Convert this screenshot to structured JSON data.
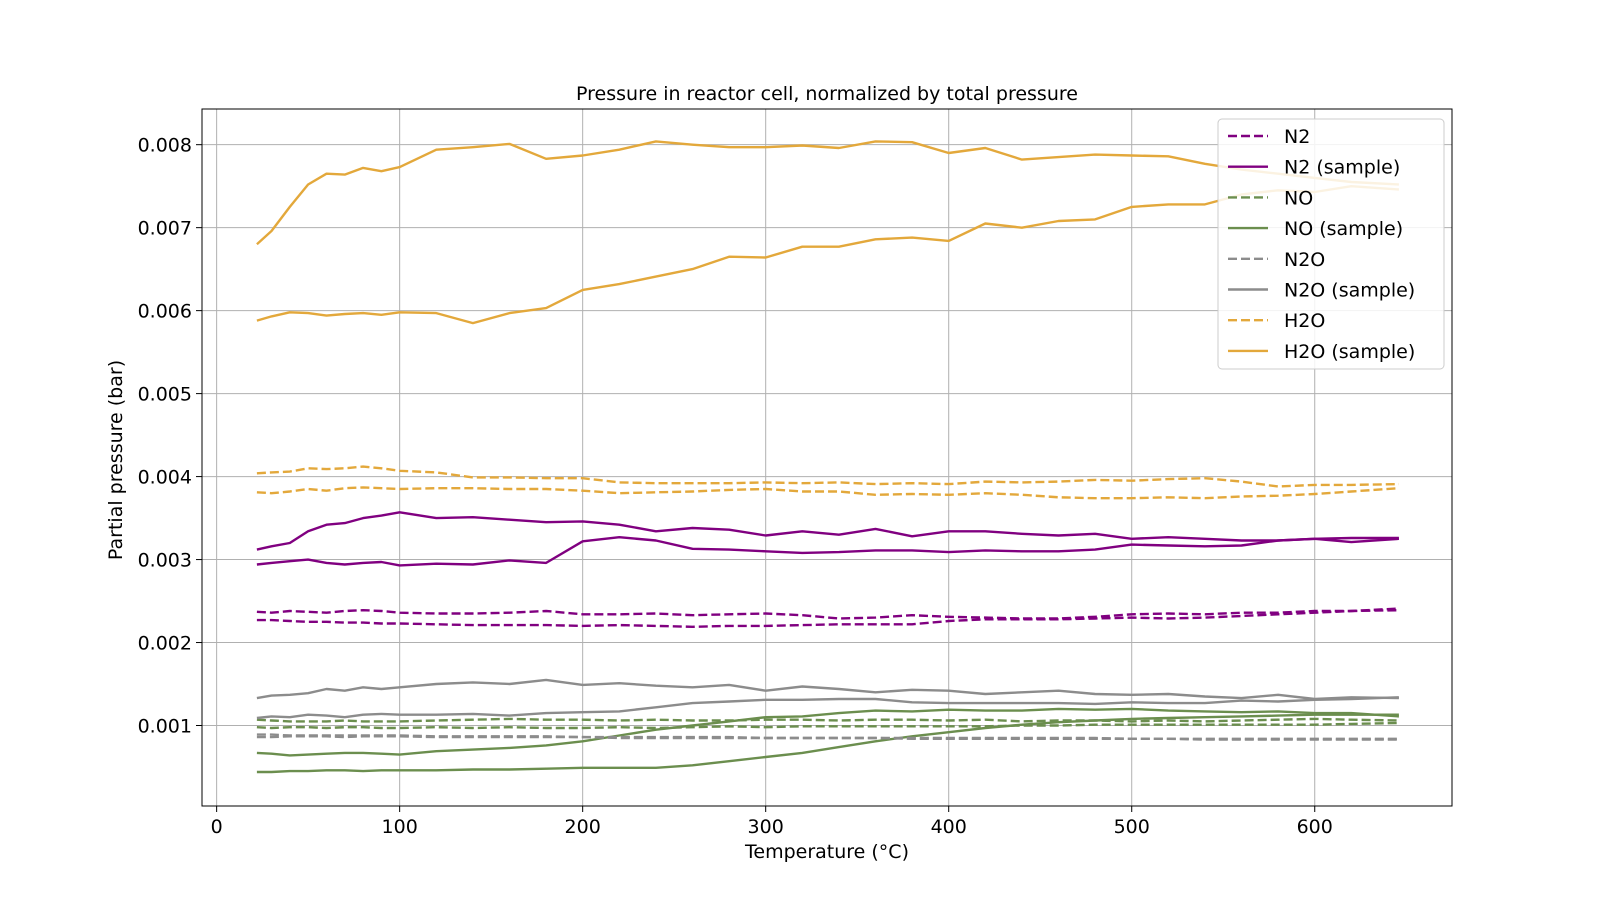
{
  "chart_data": {
    "type": "line",
    "title": "Pressure in reactor cell, normalized by total pressure",
    "xlabel": "Temperature (°C)",
    "ylabel": "Partial pressure (bar)",
    "xlim": [
      -8,
      675
    ],
    "ylim": [
      3e-05,
      0.00843
    ],
    "xticks": [
      0,
      100,
      200,
      300,
      400,
      500,
      600
    ],
    "yticks": [
      0.001,
      0.002,
      0.003,
      0.004,
      0.005,
      0.006,
      0.007,
      0.008
    ],
    "ytick_labels": [
      "0.001",
      "0.002",
      "0.003",
      "0.004",
      "0.005",
      "0.006",
      "0.007",
      "0.008"
    ],
    "grid": true,
    "legend_position": "top-right",
    "colors": {
      "N2": "#800080",
      "NO": "#6b8e4e",
      "N2O": "#8c8c8c",
      "H2O": "#e3a83b"
    },
    "x": [
      22,
      30,
      40,
      50,
      60,
      70,
      80,
      90,
      100,
      120,
      140,
      160,
      180,
      200,
      220,
      240,
      260,
      280,
      300,
      320,
      340,
      360,
      380,
      400,
      420,
      440,
      460,
      480,
      500,
      520,
      540,
      560,
      580,
      600,
      620,
      646
    ],
    "series": [
      {
        "name": "N2",
        "gas": "N2",
        "dash": true,
        "values": [
          0.00237,
          0.00236,
          0.00238,
          0.00237,
          0.00236,
          0.00238,
          0.00239,
          0.00238,
          0.00236,
          0.00235,
          0.00235,
          0.00236,
          0.00238,
          0.00234,
          0.00234,
          0.00235,
          0.00233,
          0.00234,
          0.00235,
          0.00233,
          0.00229,
          0.0023,
          0.00233,
          0.00231,
          0.0023,
          0.00229,
          0.00229,
          0.00231,
          0.00234,
          0.00235,
          0.00234,
          0.00236,
          0.00236,
          0.00238,
          0.00238,
          0.00241
        ]
      },
      {
        "name": "",
        "gas": "N2",
        "dash": true,
        "values": [
          0.00227,
          0.00227,
          0.00226,
          0.00225,
          0.00225,
          0.00224,
          0.00224,
          0.00223,
          0.00223,
          0.00222,
          0.00221,
          0.00221,
          0.00221,
          0.0022,
          0.00221,
          0.0022,
          0.00219,
          0.0022,
          0.0022,
          0.00221,
          0.00222,
          0.00222,
          0.00222,
          0.00226,
          0.00228,
          0.00228,
          0.00228,
          0.00229,
          0.0023,
          0.00229,
          0.0023,
          0.00232,
          0.00234,
          0.00236,
          0.00238,
          0.00239
        ]
      },
      {
        "name": "N2 (sample)",
        "gas": "N2",
        "dash": false,
        "values": [
          0.00312,
          0.00316,
          0.0032,
          0.00334,
          0.00342,
          0.00344,
          0.0035,
          0.00353,
          0.00357,
          0.0035,
          0.00351,
          0.00348,
          0.00345,
          0.00346,
          0.00342,
          0.00334,
          0.00338,
          0.00336,
          0.00329,
          0.00334,
          0.0033,
          0.00337,
          0.00328,
          0.00334,
          0.00334,
          0.00331,
          0.00329,
          0.00331,
          0.00325,
          0.00327,
          0.00325,
          0.00323,
          0.00323,
          0.00325,
          0.00321,
          0.00325
        ]
      },
      {
        "name": "",
        "gas": "N2",
        "dash": false,
        "values": [
          0.00294,
          0.00296,
          0.00298,
          0.003,
          0.00296,
          0.00294,
          0.00296,
          0.00297,
          0.00293,
          0.00295,
          0.00294,
          0.00299,
          0.00296,
          0.00322,
          0.00327,
          0.00323,
          0.00313,
          0.00312,
          0.0031,
          0.00308,
          0.00309,
          0.00311,
          0.00311,
          0.00309,
          0.00311,
          0.0031,
          0.0031,
          0.00312,
          0.00318,
          0.00317,
          0.00316,
          0.00317,
          0.00323,
          0.00325,
          0.00326,
          0.00326
        ]
      },
      {
        "name": "NO",
        "gas": "NO",
        "dash": true,
        "values": [
          0.00107,
          0.00106,
          0.00105,
          0.00105,
          0.00105,
          0.00106,
          0.00105,
          0.00105,
          0.00105,
          0.00106,
          0.00107,
          0.00108,
          0.00107,
          0.00107,
          0.00106,
          0.00107,
          0.00106,
          0.00106,
          0.00107,
          0.00107,
          0.00106,
          0.00107,
          0.00107,
          0.00106,
          0.00107,
          0.00105,
          0.00106,
          0.00106,
          0.00105,
          0.00106,
          0.00105,
          0.00106,
          0.00107,
          0.00108,
          0.00107,
          0.00106
        ]
      },
      {
        "name": "",
        "gas": "NO",
        "dash": true,
        "values": [
          0.00098,
          0.00097,
          0.00098,
          0.00098,
          0.00097,
          0.00098,
          0.00098,
          0.00097,
          0.00097,
          0.00098,
          0.00097,
          0.00098,
          0.00097,
          0.00097,
          0.00098,
          0.00097,
          0.00098,
          0.00099,
          0.00098,
          0.00099,
          0.00099,
          0.00099,
          0.00099,
          0.00099,
          0.00099,
          0.001,
          0.001,
          0.00101,
          0.00101,
          0.00101,
          0.00101,
          0.00101,
          0.00101,
          0.00101,
          0.00102,
          0.00103
        ]
      },
      {
        "name": "NO (sample)",
        "gas": "NO",
        "dash": false,
        "values": [
          0.00067,
          0.00066,
          0.00064,
          0.00065,
          0.00066,
          0.00067,
          0.00067,
          0.00066,
          0.00065,
          0.00069,
          0.00071,
          0.00073,
          0.00076,
          0.00081,
          0.00088,
          0.00095,
          0.001,
          0.00105,
          0.0011,
          0.00111,
          0.00115,
          0.00118,
          0.00117,
          0.00119,
          0.00118,
          0.00118,
          0.0012,
          0.00119,
          0.0012,
          0.00118,
          0.00117,
          0.00116,
          0.00117,
          0.00115,
          0.00115,
          0.00111
        ]
      },
      {
        "name": "",
        "gas": "NO",
        "dash": false,
        "values": [
          0.00044,
          0.00044,
          0.00045,
          0.00045,
          0.00046,
          0.00046,
          0.00045,
          0.00046,
          0.00046,
          0.00046,
          0.00047,
          0.00047,
          0.00048,
          0.00049,
          0.00049,
          0.00049,
          0.00052,
          0.00057,
          0.00062,
          0.00067,
          0.00074,
          0.00081,
          0.00087,
          0.00092,
          0.00097,
          0.00101,
          0.00104,
          0.00106,
          0.00108,
          0.00109,
          0.0011,
          0.00111,
          0.00112,
          0.00113,
          0.00113,
          0.00113
        ]
      },
      {
        "name": "N2O",
        "gas": "N2O",
        "dash": true,
        "values": [
          0.00089,
          0.00089,
          0.00088,
          0.00088,
          0.00088,
          0.00088,
          0.00088,
          0.00088,
          0.00088,
          0.00087,
          0.00087,
          0.00087,
          0.00087,
          0.00086,
          0.00086,
          0.00086,
          0.00086,
          0.00086,
          0.00085,
          0.00085,
          0.00085,
          0.00085,
          0.00085,
          0.00085,
          0.00085,
          0.00085,
          0.00085,
          0.00085,
          0.00084,
          0.00084,
          0.00084,
          0.00084,
          0.00084,
          0.00084,
          0.00084,
          0.00084
        ]
      },
      {
        "name": "",
        "gas": "N2O",
        "dash": true,
        "values": [
          0.00086,
          0.00086,
          0.00087,
          0.00087,
          0.00087,
          0.00086,
          0.00087,
          0.00087,
          0.00087,
          0.00086,
          0.00086,
          0.00086,
          0.00086,
          0.00086,
          0.00085,
          0.00085,
          0.00085,
          0.00085,
          0.00085,
          0.00085,
          0.00085,
          0.00085,
          0.00084,
          0.00084,
          0.00084,
          0.00084,
          0.00084,
          0.00084,
          0.00084,
          0.00084,
          0.00083,
          0.00083,
          0.00083,
          0.00083,
          0.00083,
          0.00083
        ]
      },
      {
        "name": "N2O (sample)",
        "gas": "N2O",
        "dash": false,
        "values": [
          0.00133,
          0.00136,
          0.00137,
          0.00139,
          0.00144,
          0.00142,
          0.00146,
          0.00144,
          0.00146,
          0.0015,
          0.00152,
          0.0015,
          0.00155,
          0.00149,
          0.00151,
          0.00148,
          0.00146,
          0.00149,
          0.00142,
          0.00147,
          0.00144,
          0.0014,
          0.00143,
          0.00142,
          0.00138,
          0.0014,
          0.00142,
          0.00138,
          0.00137,
          0.00138,
          0.00135,
          0.00133,
          0.00137,
          0.00132,
          0.00134,
          0.00133
        ]
      },
      {
        "name": "",
        "gas": "N2O",
        "dash": false,
        "values": [
          0.00109,
          0.00111,
          0.0011,
          0.00113,
          0.00112,
          0.0011,
          0.00113,
          0.00114,
          0.00113,
          0.00113,
          0.00114,
          0.00112,
          0.00115,
          0.00116,
          0.00117,
          0.00122,
          0.00127,
          0.00129,
          0.00131,
          0.00131,
          0.00132,
          0.00132,
          0.00128,
          0.00127,
          0.00127,
          0.00127,
          0.00127,
          0.00126,
          0.00128,
          0.00127,
          0.00127,
          0.0013,
          0.00129,
          0.00131,
          0.00132,
          0.00134
        ]
      },
      {
        "name": "H2O",
        "gas": "H2O",
        "dash": true,
        "values": [
          0.00404,
          0.00405,
          0.00406,
          0.0041,
          0.00409,
          0.0041,
          0.00412,
          0.0041,
          0.00407,
          0.00405,
          0.00399,
          0.00399,
          0.00398,
          0.00398,
          0.00393,
          0.00392,
          0.00392,
          0.00392,
          0.00393,
          0.00392,
          0.00393,
          0.00391,
          0.00392,
          0.00391,
          0.00394,
          0.00393,
          0.00394,
          0.00396,
          0.00395,
          0.00397,
          0.00398,
          0.00394,
          0.00388,
          0.0039,
          0.0039,
          0.00391
        ]
      },
      {
        "name": "",
        "gas": "H2O",
        "dash": true,
        "values": [
          0.00381,
          0.0038,
          0.00382,
          0.00385,
          0.00383,
          0.00386,
          0.00387,
          0.00386,
          0.00385,
          0.00386,
          0.00386,
          0.00385,
          0.00385,
          0.00383,
          0.0038,
          0.00381,
          0.00382,
          0.00384,
          0.00385,
          0.00382,
          0.00382,
          0.00378,
          0.00379,
          0.00378,
          0.0038,
          0.00378,
          0.00375,
          0.00374,
          0.00374,
          0.00375,
          0.00374,
          0.00376,
          0.00377,
          0.00379,
          0.00382,
          0.00386
        ]
      },
      {
        "name": "H2O (sample)",
        "gas": "H2O",
        "dash": false,
        "values": [
          0.0068,
          0.00696,
          0.00725,
          0.00752,
          0.00765,
          0.00764,
          0.00772,
          0.00768,
          0.00773,
          0.00794,
          0.00797,
          0.00801,
          0.00783,
          0.00787,
          0.00794,
          0.00804,
          0.008,
          0.00797,
          0.00797,
          0.00799,
          0.00796,
          0.00804,
          0.00803,
          0.0079,
          0.00796,
          0.00782,
          0.00785,
          0.00788,
          0.00787,
          0.00786,
          0.00777,
          0.0077,
          0.00765,
          0.0076,
          0.00755,
          0.00752
        ]
      },
      {
        "name": "",
        "gas": "H2O",
        "dash": false,
        "values": [
          0.00588,
          0.00593,
          0.00598,
          0.00597,
          0.00594,
          0.00596,
          0.00597,
          0.00595,
          0.00598,
          0.00597,
          0.00585,
          0.00597,
          0.00603,
          0.00625,
          0.00632,
          0.00641,
          0.0065,
          0.00665,
          0.00664,
          0.00677,
          0.00677,
          0.00686,
          0.00688,
          0.00684,
          0.00705,
          0.007,
          0.00708,
          0.0071,
          0.00725,
          0.00728,
          0.00728,
          0.0074,
          0.00745,
          0.00743,
          0.0075,
          0.00746
        ]
      }
    ],
    "legend": [
      {
        "label": "N2",
        "gas": "N2",
        "dash": true
      },
      {
        "label": "N2 (sample)",
        "gas": "N2",
        "dash": false
      },
      {
        "label": "NO",
        "gas": "NO",
        "dash": true
      },
      {
        "label": "NO (sample)",
        "gas": "NO",
        "dash": false
      },
      {
        "label": "N2O",
        "gas": "N2O",
        "dash": true
      },
      {
        "label": "N2O (sample)",
        "gas": "N2O",
        "dash": false
      },
      {
        "label": "H2O",
        "gas": "H2O",
        "dash": true
      },
      {
        "label": "H2O (sample)",
        "gas": "H2O",
        "dash": false
      }
    ]
  }
}
